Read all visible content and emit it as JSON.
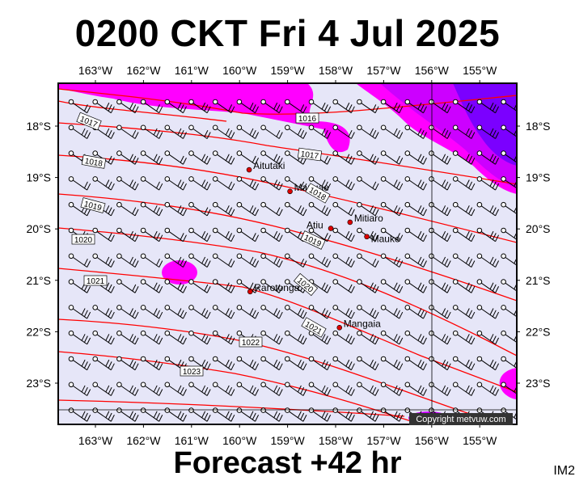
{
  "header": {
    "title": "0200 CKT Fri 4 Jul 2025"
  },
  "footer": {
    "forecast": "Forecast +42 hr",
    "code": "IM2"
  },
  "copyright": "Copyright metvuw.com",
  "colors": {
    "background": "#e6e6f8",
    "rain_light": "#ff00ff",
    "rain_medium": "#cc00ff",
    "rain_heavy": "#7b00ff",
    "isobar": "#ff0000",
    "city_dot": "#dd0000"
  },
  "axes": {
    "longitude_labels": [
      "163°W",
      "162°W",
      "161°W",
      "160°W",
      "159°W",
      "158°W",
      "157°W",
      "156°W",
      "155°W"
    ],
    "latitude_labels": [
      "18°S",
      "19°S",
      "20°S",
      "21°S",
      "22°S",
      "23°S"
    ]
  },
  "places": [
    {
      "name": "Aitutaki",
      "lon": -159.8,
      "lat": -18.85
    },
    {
      "name": "Manuae",
      "lon": -158.95,
      "lat": -19.27
    },
    {
      "name": "Mitiaro",
      "lon": -157.7,
      "lat": -19.87
    },
    {
      "name": "Atiu",
      "lon": -158.1,
      "lat": -19.99
    },
    {
      "name": "Mauke",
      "lon": -157.35,
      "lat": -20.15
    },
    {
      "name": "Rarotonga",
      "lon": -159.78,
      "lat": -21.22
    },
    {
      "name": "Mangaia",
      "lon": -157.92,
      "lat": -21.92
    }
  ],
  "isobars": [
    {
      "label": "1016",
      "pressure_hpa": 1016
    },
    {
      "label": "1017",
      "pressure_hpa": 1017
    },
    {
      "label": "1018",
      "pressure_hpa": 1018
    },
    {
      "label": "1019",
      "pressure_hpa": 1019
    },
    {
      "label": "1020",
      "pressure_hpa": 1020
    },
    {
      "label": "1021",
      "pressure_hpa": 1021
    },
    {
      "label": "1022",
      "pressure_hpa": 1022
    },
    {
      "label": "1023",
      "pressure_hpa": 1023
    }
  ],
  "wind": {
    "direction": "south-easterly",
    "barbs_typical": 3
  }
}
